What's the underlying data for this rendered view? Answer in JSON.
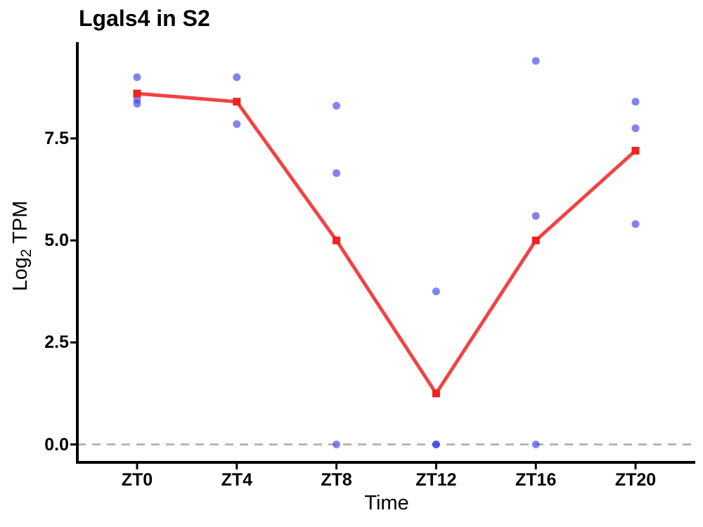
{
  "title": "Lgals4 in S2",
  "y_axis": {
    "label_base": "Log",
    "label_sub": "2",
    "label_rest": " TPM",
    "tick_labels": [
      "0.0",
      "2.5",
      "5.0",
      "7.5"
    ]
  },
  "x_axis": {
    "label": "Time"
  },
  "chart_data": {
    "type": "line",
    "title": "Lgals4 in S2",
    "xlabel": "Time",
    "ylabel": "Log2 TPM",
    "categories": [
      "ZT0",
      "ZT4",
      "ZT8",
      "ZT12",
      "ZT16",
      "ZT20"
    ],
    "yticks": [
      0.0,
      2.5,
      5.0,
      7.5
    ],
    "ylim": [
      -0.45,
      9.9
    ],
    "grid": false,
    "legend": false,
    "baseline": {
      "y": 0,
      "style": "dashed",
      "color": "#a9a9a9"
    },
    "series": [
      {
        "name": "replicate-points",
        "type": "scatter",
        "color": "#3737e6",
        "opacity": 0.62,
        "points": [
          [
            0,
            9.0
          ],
          [
            0,
            8.45
          ],
          [
            0,
            8.35
          ],
          [
            1,
            9.0
          ],
          [
            1,
            7.85
          ],
          [
            2,
            8.3
          ],
          [
            2,
            6.65
          ],
          [
            2,
            0.0
          ],
          [
            3,
            3.75
          ],
          [
            3,
            0.0
          ],
          [
            3,
            0.0
          ],
          [
            4,
            9.4
          ],
          [
            4,
            5.6
          ],
          [
            4,
            0.0
          ],
          [
            5,
            8.4
          ],
          [
            5,
            7.75
          ],
          [
            5,
            5.4
          ]
        ]
      },
      {
        "name": "mean-line",
        "type": "line",
        "color": "#ee2222",
        "marker": "square",
        "values": [
          8.6,
          8.4,
          5.0,
          1.25,
          5.0,
          7.2
        ]
      }
    ]
  }
}
